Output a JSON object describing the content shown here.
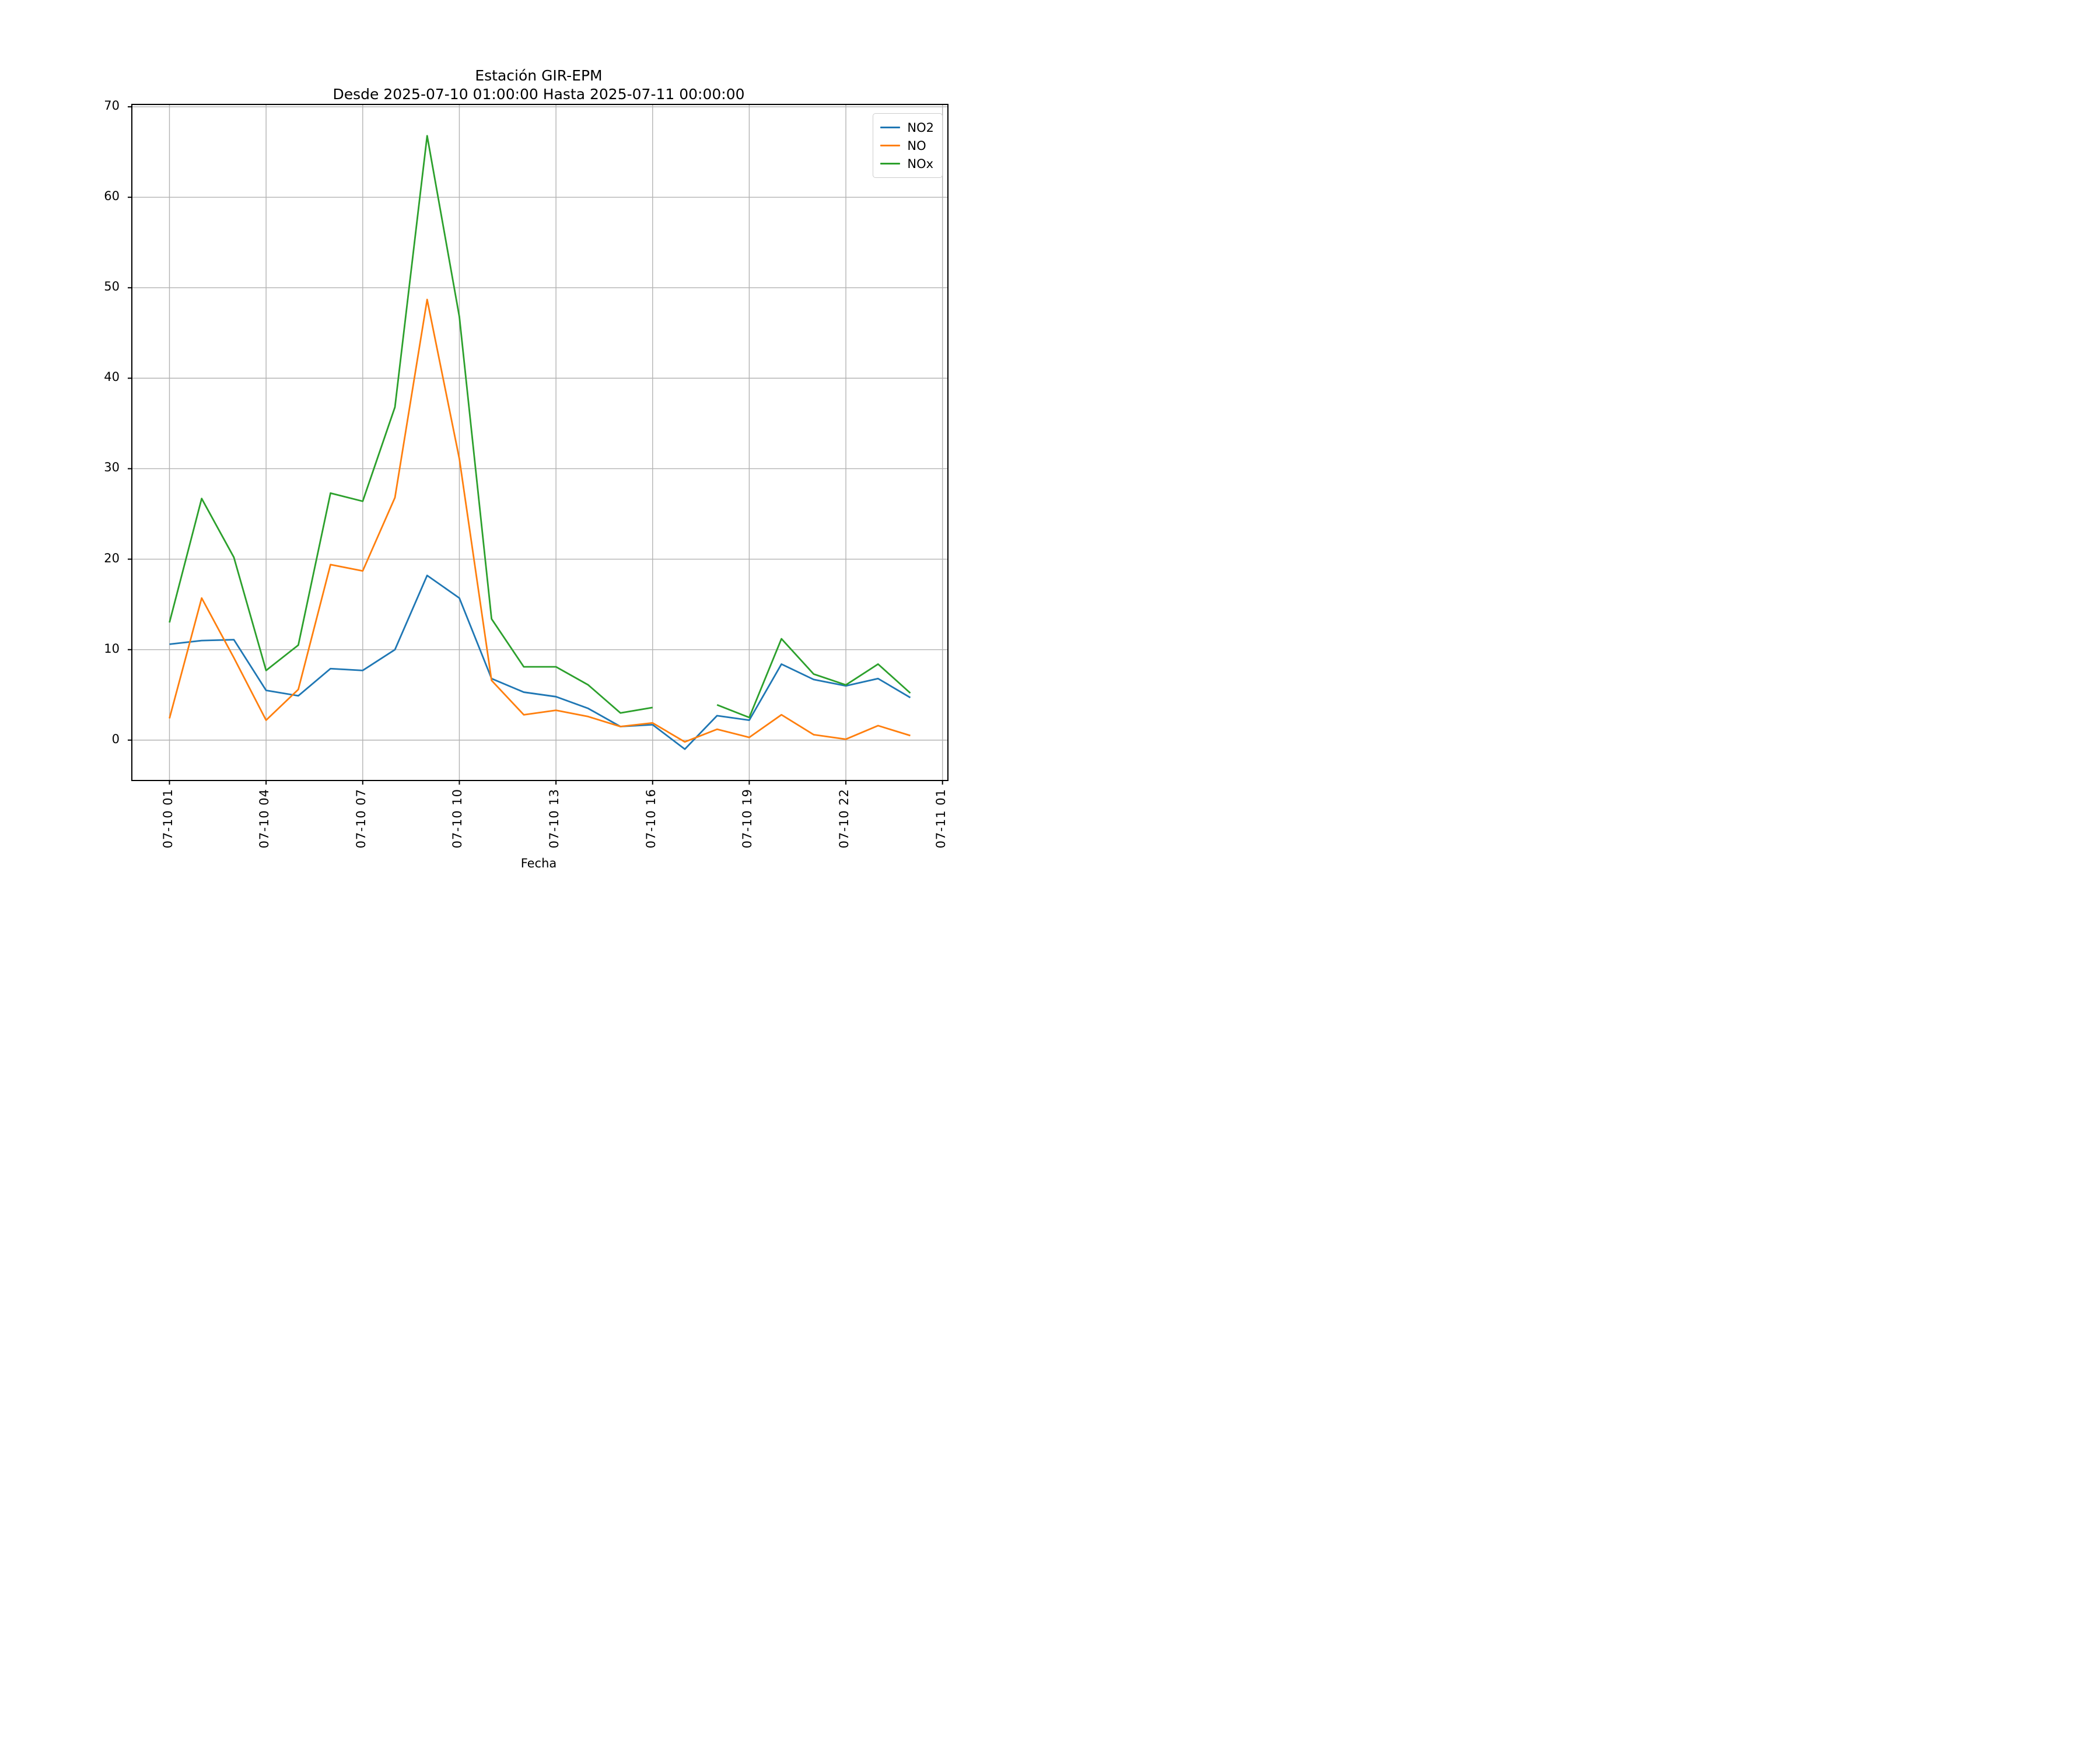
{
  "title": {
    "line1": "Estación GIR-EPM",
    "line2": "Desde 2025-07-10 01:00:00 Hasta 2025-07-11 00:00:00"
  },
  "axes": {
    "xlabel": "Fecha",
    "ylabel": "",
    "background": "#ffffff",
    "spine_color": "#000000",
    "grid_color": "#b3b3b3"
  },
  "legend": {
    "position": "upper right",
    "entries": [
      {
        "label": "NO2",
        "color": "#1f77b4"
      },
      {
        "label": "NO",
        "color": "#ff7f0e"
      },
      {
        "label": "NOx",
        "color": "#2ca02c"
      }
    ]
  },
  "chart_data": {
    "type": "line",
    "title": "Estación GIR-EPM",
    "subtitle": "Desde 2025-07-10 01:00:00 Hasta 2025-07-11 00:00:00",
    "xlabel": "Fecha",
    "ylabel": "",
    "grid": true,
    "legend_position": "upper right",
    "x_hours": [
      1,
      2,
      3,
      4,
      5,
      6,
      7,
      8,
      9,
      10,
      11,
      12,
      13,
      14,
      15,
      16,
      17,
      18,
      19,
      20,
      21,
      22,
      23,
      24
    ],
    "x_tick_hours": [
      1,
      4,
      7,
      10,
      13,
      16,
      19,
      22,
      25
    ],
    "x_tick_labels": [
      "07-10 01",
      "07-10 04",
      "07-10 07",
      "07-10 10",
      "07-10 13",
      "07-10 16",
      "07-10 19",
      "07-10 22",
      "07-11 01"
    ],
    "y_ticks": [
      0,
      10,
      20,
      30,
      40,
      50,
      60,
      70
    ],
    "ylim": [
      -4.4,
      70.2
    ],
    "xlim_hours": [
      -0.15,
      25.15
    ],
    "series": [
      {
        "name": "NO2",
        "color": "#1f77b4",
        "values": [
          10.6,
          11.0,
          11.1,
          5.5,
          4.9,
          7.9,
          7.7,
          10.0,
          18.2,
          15.7,
          6.8,
          5.3,
          4.8,
          3.5,
          1.5,
          1.7,
          -1.0,
          2.7,
          2.2,
          8.4,
          6.7,
          6.0,
          6.8,
          4.7
        ]
      },
      {
        "name": "NO",
        "color": "#ff7f0e",
        "values": [
          2.4,
          15.7,
          9.1,
          2.2,
          5.6,
          19.4,
          18.7,
          26.8,
          48.7,
          31.1,
          6.6,
          2.8,
          3.3,
          2.6,
          1.5,
          1.9,
          -0.2,
          1.2,
          0.3,
          2.8,
          0.6,
          0.1,
          1.6,
          0.5
        ]
      },
      {
        "name": "NOx",
        "color": "#2ca02c",
        "values": [
          13.0,
          26.7,
          20.2,
          7.7,
          10.5,
          27.3,
          26.4,
          36.8,
          66.8,
          46.8,
          13.4,
          8.1,
          8.1,
          6.1,
          3.0,
          3.6,
          null,
          3.9,
          2.5,
          11.2,
          7.3,
          6.1,
          8.4,
          5.2
        ]
      }
    ]
  }
}
